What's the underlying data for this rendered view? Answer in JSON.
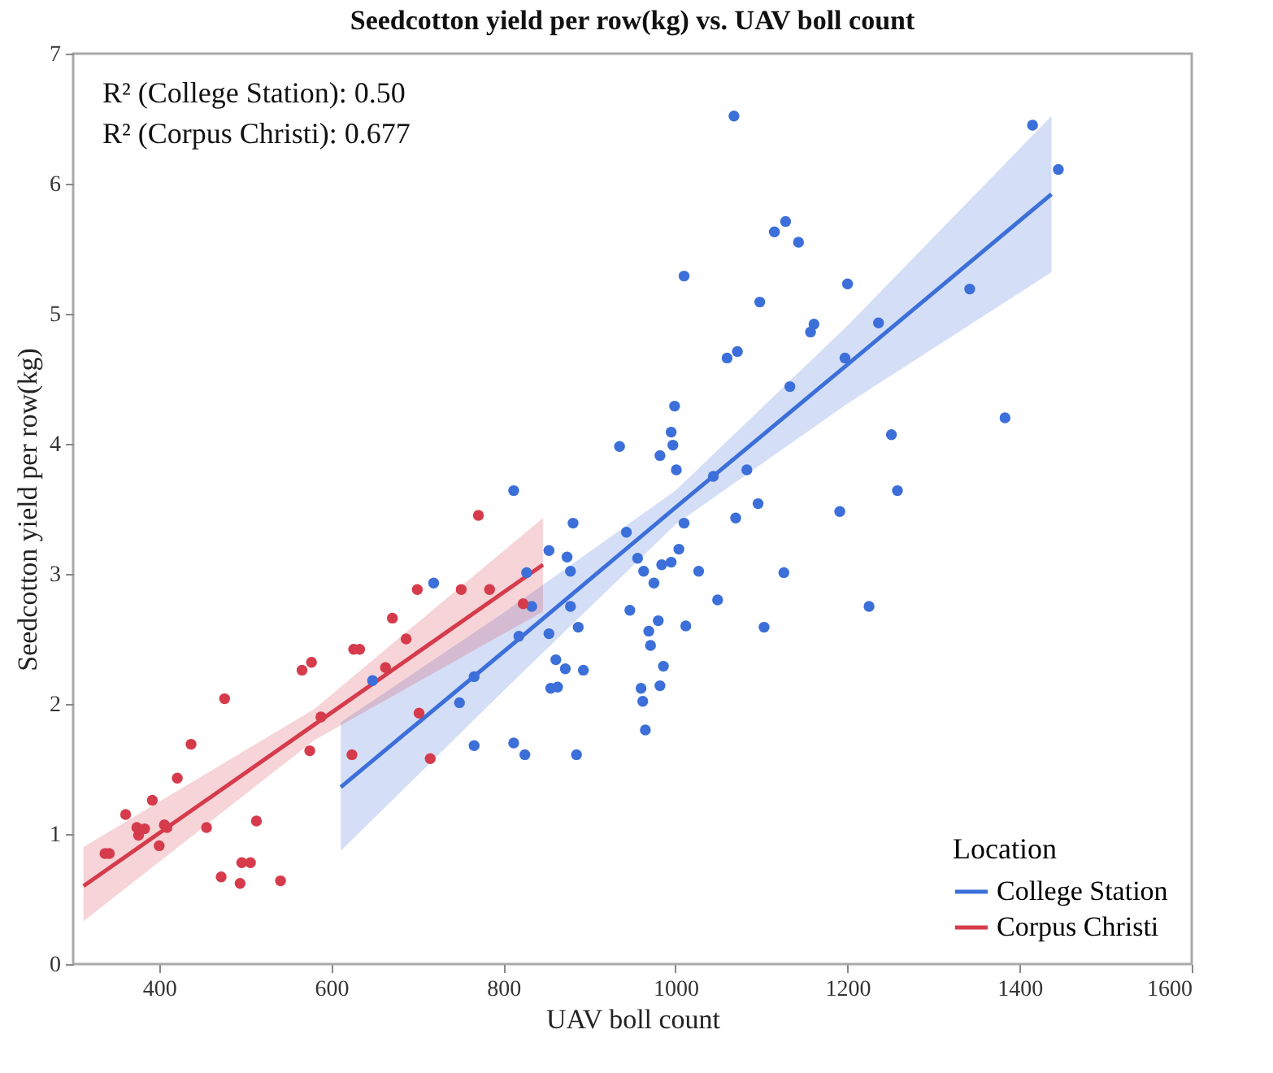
{
  "chart_data": {
    "type": "scatter",
    "title": "Seedcotton yield per row(kg) vs. UAV boll count",
    "xlabel": "UAV boll count",
    "ylabel": "Seedcotton yield per row(kg)",
    "legend_title": "Location",
    "legend": "bottom right",
    "grid": false,
    "xlim": [
      300,
      1600
    ],
    "xticks": [
      400,
      600,
      800,
      1000,
      1200,
      1400,
      1600
    ],
    "ylim": [
      0,
      7
    ],
    "yticks": [
      0,
      1,
      2,
      3,
      4,
      5,
      6,
      7
    ],
    "annotations": [
      "R² (College Station): 0.50",
      "R² (Corpus Christi): 0.677"
    ],
    "series": [
      {
        "marker": "circle",
        "color": "#3c6fd9",
        "x": [
          812,
          719,
          881,
          853,
          874,
          878,
          827,
          833,
          878,
          818,
          853,
          887,
          766,
          749,
          861,
          872,
          893,
          855,
          863,
          766,
          812,
          825,
          885,
          943,
          956,
          963,
          975,
          984,
          995,
          1004,
          1010,
          1027,
          1044,
          1083,
          1096,
          1070,
          1049,
          1012,
          947,
          969,
          980,
          971,
          986,
          960,
          962,
          982,
          965,
          982,
          1001,
          1103,
          1068,
          1415,
          1445,
          1115,
          1128,
          1143,
          1010,
          1200,
          1098,
          1161,
          1157,
          1236,
          1342,
          1060,
          1072,
          1197,
          1133,
          999,
          995,
          997,
          935,
          1383,
          1251,
          1258,
          1191,
          1126,
          1225,
          648
        ],
        "values": [
          3.64,
          2.93,
          3.39,
          3.18,
          3.13,
          3.02,
          3.01,
          2.75,
          2.75,
          2.52,
          2.54,
          2.59,
          2.21,
          2.01,
          2.34,
          2.27,
          2.26,
          2.12,
          2.13,
          1.68,
          1.7,
          1.61,
          1.61,
          3.32,
          3.12,
          3.02,
          2.93,
          3.07,
          3.09,
          3.19,
          3.39,
          3.02,
          3.75,
          3.8,
          3.54,
          3.43,
          2.8,
          2.6,
          2.72,
          2.56,
          2.64,
          2.45,
          2.29,
          2.12,
          2.02,
          2.14,
          1.8,
          3.91,
          3.8,
          2.59,
          6.52,
          6.45,
          6.11,
          5.63,
          5.71,
          5.55,
          5.29,
          5.23,
          5.09,
          4.92,
          4.86,
          4.93,
          5.19,
          4.66,
          4.71,
          4.66,
          4.44,
          4.29,
          4.09,
          3.99,
          3.98,
          4.2,
          4.07,
          3.64,
          3.48,
          3.01,
          2.75,
          2.18
        ]
      },
      {
        "marker": "circle",
        "color": "#d63b4c",
        "x": [
          337,
          342,
          361,
          374,
          376,
          383,
          392,
          400,
          406,
          409,
          421,
          437,
          455,
          472,
          476,
          494,
          496,
          506,
          513,
          541,
          566,
          577,
          575,
          588,
          624,
          626,
          633,
          663,
          671,
          687,
          700,
          702,
          715,
          751,
          771,
          784,
          823
        ],
        "values": [
          0.85,
          0.85,
          1.15,
          1.05,
          0.99,
          1.04,
          1.26,
          0.91,
          1.07,
          1.05,
          1.43,
          1.69,
          1.05,
          0.67,
          2.04,
          0.62,
          0.78,
          0.78,
          1.1,
          0.64,
          2.26,
          2.32,
          1.64,
          1.9,
          1.61,
          2.42,
          2.42,
          2.28,
          2.66,
          2.5,
          2.88,
          1.93,
          1.58,
          2.88,
          3.45,
          2.88,
          2.77
        ]
      },
      {
        "type": "line",
        "name": "College Station",
        "color": "#3c6fd9",
        "x": [
          611,
          800,
          1000,
          1200,
          1437
        ],
        "values": [
          1.36,
          2.4,
          3.51,
          4.61,
          5.92
        ],
        "lower": [
          0.87,
          2.1,
          3.38,
          4.31,
          5.32
        ],
        "upper": [
          1.86,
          2.7,
          3.64,
          4.91,
          6.52
        ]
      },
      {
        "type": "line",
        "name": "Corpus Christi",
        "color": "#d63b4c",
        "x": [
          312,
          580,
          846
        ],
        "values": [
          0.6,
          1.84,
          3.07
        ],
        "lower": [
          0.33,
          1.72,
          2.71
        ],
        "upper": [
          0.9,
          1.96,
          3.43
        ]
      }
    ]
  }
}
